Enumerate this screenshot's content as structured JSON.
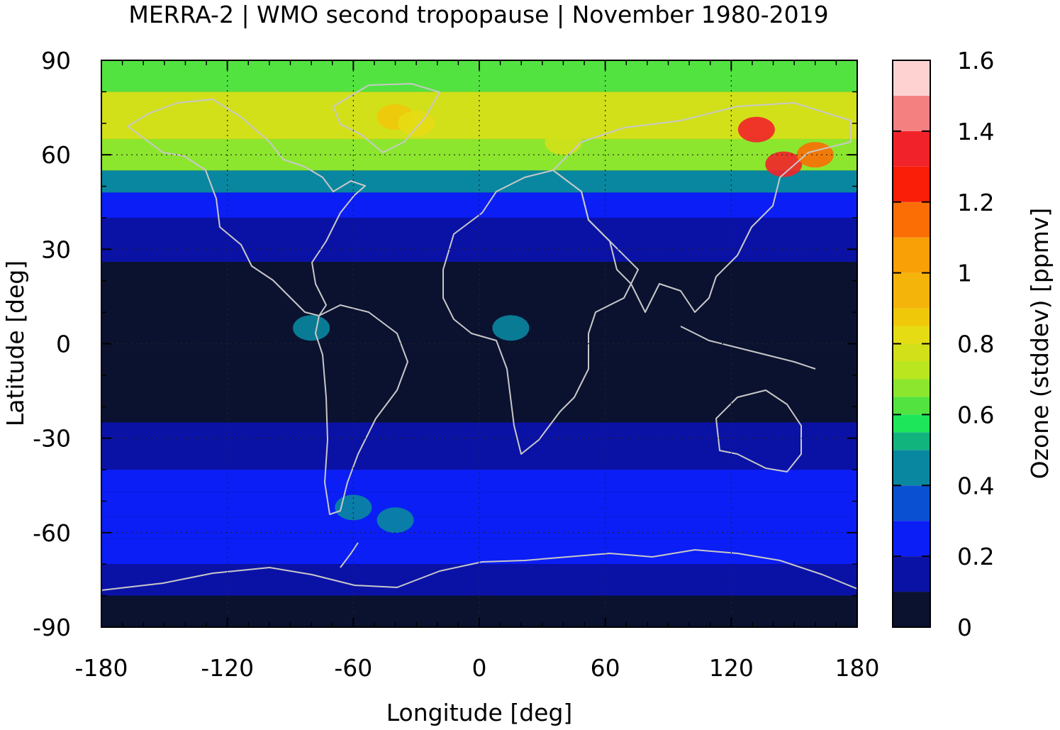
{
  "chart_data": {
    "type": "heatmap",
    "title": "MERRA-2 | WMO second tropopause | November 1980-2019",
    "xlabel": "Longitude [deg]",
    "ylabel": "Latitude [deg]",
    "xlim": [
      -180,
      180
    ],
    "ylim": [
      -90,
      90
    ],
    "x_ticks": [
      -180,
      -120,
      -60,
      0,
      60,
      120,
      180
    ],
    "x_tick_labels": [
      "-180",
      "-120",
      "-60",
      "0",
      "60",
      "120",
      "180"
    ],
    "y_ticks": [
      90,
      60,
      30,
      0,
      -30,
      -60,
      -90
    ],
    "y_tick_labels": [
      "90",
      "60",
      "30",
      "0",
      "-30",
      "-60",
      "-90"
    ],
    "grid": true,
    "colorbar": {
      "label": "Ozone (stddev) [ppmv]",
      "range": [
        0,
        1.6
      ],
      "tick_values": [
        0,
        0.2,
        0.4,
        0.6,
        0.8,
        1.0,
        1.2,
        1.4,
        1.6
      ],
      "tick_labels": [
        "0",
        "0.2",
        "0.4",
        "0.6",
        "0.8",
        "1",
        "1.2",
        "1.4",
        "1.6"
      ],
      "levels": [
        {
          "from": 0.0,
          "to": 0.1,
          "color": "#0b1230"
        },
        {
          "from": 0.1,
          "to": 0.2,
          "color": "#0a12a6"
        },
        {
          "from": 0.2,
          "to": 0.3,
          "color": "#0b1ef5"
        },
        {
          "from": 0.3,
          "to": 0.4,
          "color": "#0a50d2"
        },
        {
          "from": 0.4,
          "to": 0.5,
          "color": "#0a87a0"
        },
        {
          "from": 0.5,
          "to": 0.55,
          "color": "#10b47c"
        },
        {
          "from": 0.55,
          "to": 0.6,
          "color": "#1ee65a"
        },
        {
          "from": 0.6,
          "to": 0.65,
          "color": "#52e341"
        },
        {
          "from": 0.65,
          "to": 0.7,
          "color": "#8ce62e"
        },
        {
          "from": 0.7,
          "to": 0.75,
          "color": "#b9e61e"
        },
        {
          "from": 0.75,
          "to": 0.8,
          "color": "#d2e01a"
        },
        {
          "from": 0.8,
          "to": 0.85,
          "color": "#e6dc14"
        },
        {
          "from": 0.85,
          "to": 0.9,
          "color": "#f0c80a"
        },
        {
          "from": 0.9,
          "to": 1.0,
          "color": "#f5b40a"
        },
        {
          "from": 1.0,
          "to": 1.1,
          "color": "#f8a005"
        },
        {
          "from": 1.1,
          "to": 1.2,
          "color": "#fb6e05"
        },
        {
          "from": 1.2,
          "to": 1.3,
          "color": "#fa1e08"
        },
        {
          "from": 1.3,
          "to": 1.4,
          "color": "#f2222a"
        },
        {
          "from": 1.4,
          "to": 1.5,
          "color": "#f48080"
        },
        {
          "from": 1.5,
          "to": 1.6,
          "color": "#ffd2d2"
        }
      ]
    },
    "field_description_points": {
      "zonal_bands": [
        {
          "lat_from": 80,
          "lat_to": 90,
          "value": 0.62
        },
        {
          "lat_from": 65,
          "lat_to": 80,
          "value": 0.78
        },
        {
          "lat_from": 55,
          "lat_to": 65,
          "value": 0.66
        },
        {
          "lat_from": 48,
          "lat_to": 55,
          "value": 0.42
        },
        {
          "lat_from": 40,
          "lat_to": 48,
          "value": 0.25
        },
        {
          "lat_from": 26,
          "lat_to": 40,
          "value": 0.15
        },
        {
          "lat_from": -25,
          "lat_to": 26,
          "value": 0.05
        },
        {
          "lat_from": -40,
          "lat_to": -25,
          "value": 0.15
        },
        {
          "lat_from": -47,
          "lat_to": -40,
          "value": 0.22
        },
        {
          "lat_from": -55,
          "lat_to": -47,
          "value": 0.28
        },
        {
          "lat_from": -62,
          "lat_to": -55,
          "value": 0.26
        },
        {
          "lat_from": -70,
          "lat_to": -62,
          "value": 0.22
        },
        {
          "lat_from": -80,
          "lat_to": -70,
          "value": 0.12
        },
        {
          "lat_from": -90,
          "lat_to": -80,
          "value": 0.05
        }
      ],
      "features": [
        {
          "lon": 132,
          "lat": 68,
          "value": 1.35
        },
        {
          "lon": 145,
          "lat": 57,
          "value": 1.35
        },
        {
          "lon": 160,
          "lat": 60,
          "value": 1.1
        },
        {
          "lon": -40,
          "lat": 72,
          "value": 0.85
        },
        {
          "lon": -30,
          "lat": 70,
          "value": 0.82
        },
        {
          "lon": 40,
          "lat": 64,
          "value": 0.78
        },
        {
          "lon": -60,
          "lat": -52,
          "value": 0.45
        },
        {
          "lon": -40,
          "lat": -56,
          "value": 0.4
        },
        {
          "lon": -80,
          "lat": 5,
          "value": 0.45
        },
        {
          "lon": 15,
          "lat": 5,
          "value": 0.4
        }
      ]
    }
  }
}
